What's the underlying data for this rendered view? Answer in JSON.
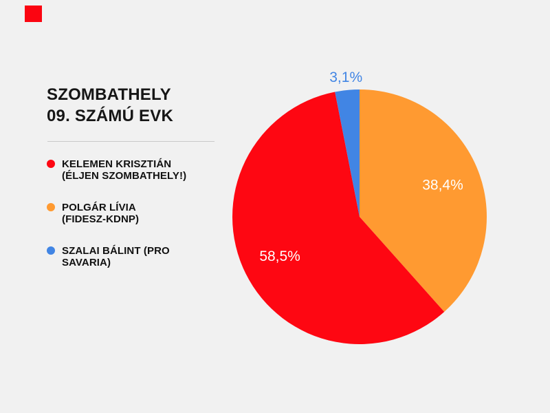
{
  "page": {
    "background_color": "#F1F1F1"
  },
  "branding": {
    "square_color": "#FB0511"
  },
  "header": {
    "title_lines": [
      "SZOMBATHELY",
      "09. SZÁMÚ EVK"
    ]
  },
  "chart_data": {
    "type": "pie",
    "title": "SZOMBATHELY 09. SZÁMÚ EVK",
    "legend_position": "left",
    "direction": "clockwise",
    "start_angle_deg": 0,
    "draw_order": [
      1,
      0,
      2
    ],
    "inside_label_radius_factor": 0.7,
    "outside_label_radius_factor": 1.1,
    "outside_label_threshold_pct": 5,
    "inside_label_color": "#FFFFFF",
    "label_font_px": 21,
    "series": [
      {
        "name": "KELEMEN KRISZTIÁN (ÉLJEN SZOMBATHELY!)",
        "legend_lines": [
          "KELEMEN KRISZTIÁN",
          "(ÉLJEN SZOMBATHELY!)"
        ],
        "value": 58.5,
        "label": "58,5%",
        "color": "#FE0712"
      },
      {
        "name": "POLGÁR LÍVIA (FIDESZ-KDNP)",
        "legend_lines": [
          "POLGÁR LÍVIA",
          "(FIDESZ-KDNP)"
        ],
        "value": 38.4,
        "label": "38,4%",
        "color": "#FF9A31"
      },
      {
        "name": "SZALAI BÁLINT (PRO SAVARIA)",
        "legend_lines": [
          "SZALAI BÁLINT (PRO",
          "SAVARIA)"
        ],
        "value": 3.1,
        "label": "3,1%",
        "color": "#4185E4"
      }
    ]
  }
}
